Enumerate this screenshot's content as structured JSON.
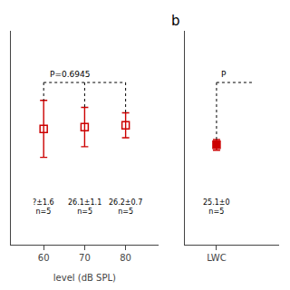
{
  "chart_data": [
    {
      "type": "scatter",
      "x": [
        60,
        70,
        80
      ],
      "values": [
        26.0,
        26.1,
        26.2
      ],
      "errors": [
        1.6,
        1.1,
        0.7
      ],
      "color": "#cc0000",
      "marker": "square-open",
      "xlabel": "level (dB SPL)",
      "xlim": [
        52,
        88
      ],
      "xticks": [
        60,
        70,
        80
      ],
      "ylim": [
        19.5,
        31.5
      ],
      "tick_labels": "x",
      "grid": false,
      "bracket": {
        "y": 28.6,
        "x": [
          60,
          80
        ],
        "legs": [
          60,
          70,
          80
        ]
      },
      "p_value": {
        "text": "P=0.6945",
        "x": 61
      },
      "annotations": [
        {
          "x": 60,
          "y": 22.2,
          "text": "?±1.6\nn=5"
        },
        {
          "x": 70,
          "y": 22.2,
          "text": "26.1±1.1\nn=5"
        },
        {
          "x": 80,
          "y": 22.2,
          "text": "26.2±0.7\nn=5"
        }
      ]
    },
    {
      "type": "scatter",
      "title": "b",
      "x": [
        1
      ],
      "values": [
        25.1
      ],
      "errors": [
        0.3
      ],
      "color": "#cc0000",
      "marker": "square",
      "xlim": [
        0.5,
        2.0
      ],
      "xticks": [
        {
          "value": 1,
          "label": "LWC"
        }
      ],
      "ylim": [
        19.5,
        31.5
      ],
      "tick_labels": "x",
      "grid": false,
      "bracket": {
        "y": 28.6,
        "x": [
          1,
          1.6
        ],
        "legs": [
          1
        ]
      },
      "p_value": {
        "text": "P",
        "x": 1.05
      },
      "annotations": [
        {
          "x": 1,
          "y": 22.2,
          "text": "25.1±0\nn=5"
        }
      ]
    }
  ]
}
